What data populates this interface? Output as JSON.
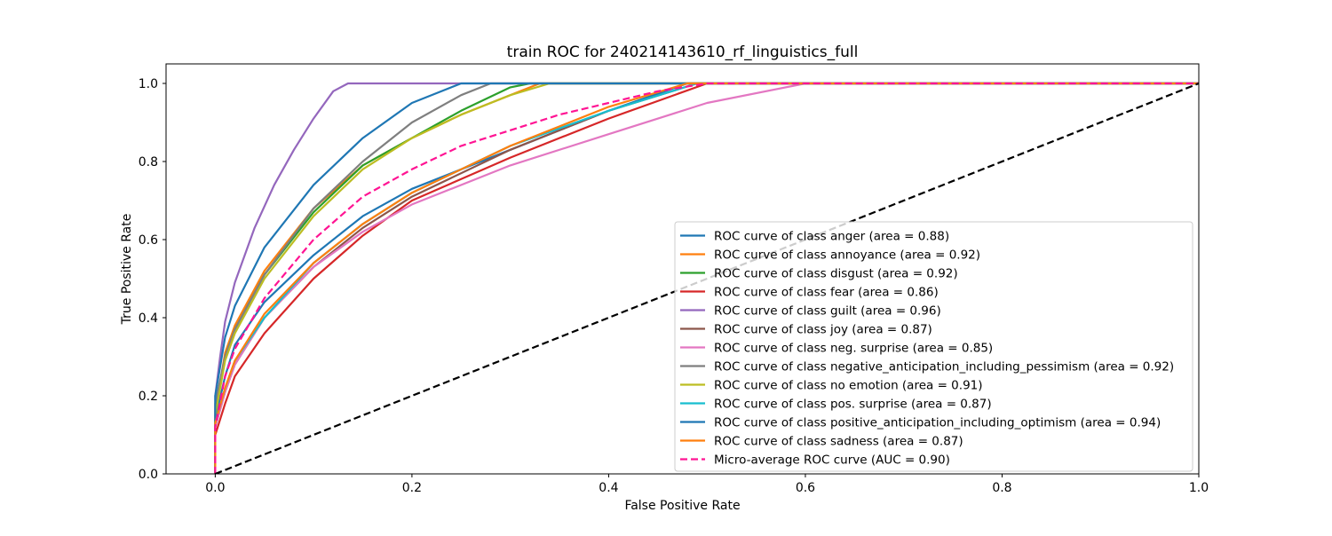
{
  "chart_data": {
    "type": "line",
    "title": "train ROC for 240214143610_rf_linguistics_full",
    "xlabel": "False Positive Rate",
    "ylabel": "True Positive Rate",
    "xlim": [
      -0.05,
      1.0
    ],
    "ylim": [
      0.0,
      1.05
    ],
    "xticks": [
      "0.0",
      "0.2",
      "0.4",
      "0.6",
      "0.8",
      "1.0"
    ],
    "yticks": [
      "0.0",
      "0.2",
      "0.4",
      "0.6",
      "0.8",
      "1.0"
    ],
    "grid": false,
    "legend_position": "lower-right",
    "series": [
      {
        "name": "ROC curve of class anger (area = 0.88)",
        "color": "#1f77b4",
        "dash": "solid",
        "x": [
          0,
          0,
          0.01,
          0.02,
          0.05,
          0.1,
          0.15,
          0.2,
          0.3,
          0.4,
          0.48,
          1.0
        ],
        "y": [
          0,
          0.14,
          0.25,
          0.33,
          0.44,
          0.56,
          0.66,
          0.73,
          0.83,
          0.93,
          1.0,
          1.0
        ]
      },
      {
        "name": "ROC curve of class annoyance (area = 0.92)",
        "color": "#ff7f0e",
        "dash": "solid",
        "x": [
          0,
          0,
          0.01,
          0.02,
          0.05,
          0.1,
          0.15,
          0.2,
          0.25,
          0.3,
          0.33,
          1.0
        ],
        "y": [
          0,
          0.16,
          0.31,
          0.38,
          0.52,
          0.68,
          0.79,
          0.86,
          0.92,
          0.97,
          1.0,
          1.0
        ]
      },
      {
        "name": "ROC curve of class disgust (area = 0.92)",
        "color": "#2ca02c",
        "dash": "solid",
        "x": [
          0,
          0,
          0.01,
          0.02,
          0.05,
          0.1,
          0.15,
          0.2,
          0.25,
          0.3,
          0.32,
          1.0
        ],
        "y": [
          0,
          0.15,
          0.3,
          0.37,
          0.51,
          0.67,
          0.79,
          0.86,
          0.93,
          0.99,
          1.0,
          1.0
        ]
      },
      {
        "name": "ROC curve of class fear (area = 0.86)",
        "color": "#d62728",
        "dash": "solid",
        "x": [
          0,
          0,
          0.01,
          0.02,
          0.05,
          0.1,
          0.15,
          0.2,
          0.3,
          0.4,
          0.5,
          1.0
        ],
        "y": [
          0,
          0.1,
          0.18,
          0.25,
          0.36,
          0.5,
          0.61,
          0.7,
          0.81,
          0.91,
          1.0,
          1.0
        ]
      },
      {
        "name": "ROC curve of class guilt (area = 0.96)",
        "color": "#9467bd",
        "dash": "solid",
        "x": [
          0,
          0,
          0.005,
          0.01,
          0.02,
          0.04,
          0.06,
          0.08,
          0.1,
          0.12,
          0.135,
          1.0
        ],
        "y": [
          0,
          0.2,
          0.3,
          0.39,
          0.49,
          0.63,
          0.74,
          0.83,
          0.91,
          0.98,
          1.0,
          1.0
        ]
      },
      {
        "name": "ROC curve of class joy (area = 0.87)",
        "color": "#8c564b",
        "dash": "solid",
        "x": [
          0,
          0,
          0.01,
          0.02,
          0.05,
          0.1,
          0.15,
          0.2,
          0.3,
          0.4,
          0.49,
          1.0
        ],
        "y": [
          0,
          0.12,
          0.21,
          0.28,
          0.4,
          0.53,
          0.63,
          0.71,
          0.83,
          0.93,
          1.0,
          1.0
        ]
      },
      {
        "name": "ROC curve of class neg. surprise (area = 0.85)",
        "color": "#e377c2",
        "dash": "solid",
        "x": [
          0,
          0,
          0.01,
          0.02,
          0.05,
          0.1,
          0.15,
          0.2,
          0.3,
          0.4,
          0.5,
          0.6,
          1.0
        ],
        "y": [
          0,
          0.12,
          0.21,
          0.28,
          0.4,
          0.53,
          0.62,
          0.69,
          0.79,
          0.87,
          0.95,
          1.0,
          1.0
        ]
      },
      {
        "name": "ROC curve of class negative_anticipation_including_pessimism (area = 0.92)",
        "color": "#7f7f7f",
        "dash": "solid",
        "x": [
          0,
          0,
          0.01,
          0.02,
          0.05,
          0.1,
          0.15,
          0.2,
          0.25,
          0.28,
          1.0
        ],
        "y": [
          0,
          0.18,
          0.3,
          0.37,
          0.51,
          0.68,
          0.8,
          0.9,
          0.97,
          1.0,
          1.0
        ]
      },
      {
        "name": "ROC curve of class no emotion (area = 0.91)",
        "color": "#bcbd22",
        "dash": "solid",
        "x": [
          0,
          0,
          0.01,
          0.02,
          0.05,
          0.1,
          0.15,
          0.2,
          0.25,
          0.3,
          0.34,
          1.0
        ],
        "y": [
          0,
          0.15,
          0.29,
          0.36,
          0.5,
          0.66,
          0.78,
          0.86,
          0.92,
          0.97,
          1.0,
          1.0
        ]
      },
      {
        "name": "ROC curve of class pos. surprise (area = 0.87)",
        "color": "#17becf",
        "dash": "solid",
        "x": [
          0,
          0,
          0.01,
          0.02,
          0.05,
          0.1,
          0.15,
          0.2,
          0.3,
          0.4,
          0.49,
          1.0
        ],
        "y": [
          0,
          0.13,
          0.22,
          0.29,
          0.4,
          0.54,
          0.64,
          0.72,
          0.84,
          0.93,
          1.0,
          1.0
        ]
      },
      {
        "name": "ROC curve of class positive_anticipation_including_optimism (area = 0.94)",
        "color": "#1f77b4",
        "dash": "solid",
        "x": [
          0,
          0,
          0.01,
          0.02,
          0.05,
          0.1,
          0.15,
          0.2,
          0.25,
          1.0
        ],
        "y": [
          0,
          0.2,
          0.35,
          0.43,
          0.58,
          0.74,
          0.86,
          0.95,
          1.0,
          1.0
        ]
      },
      {
        "name": "ROC curve of class sadness (area = 0.87)",
        "color": "#ff7f0e",
        "dash": "solid",
        "x": [
          0,
          0,
          0.01,
          0.02,
          0.05,
          0.1,
          0.15,
          0.2,
          0.3,
          0.4,
          0.48,
          1.0
        ],
        "y": [
          0,
          0.13,
          0.22,
          0.29,
          0.41,
          0.54,
          0.64,
          0.72,
          0.84,
          0.94,
          1.0,
          1.0
        ]
      },
      {
        "name": "Micro-average ROC curve (AUC = 0.90)",
        "color": "#ff1493",
        "dash": "dashed",
        "x": [
          0,
          0,
          0.01,
          0.02,
          0.05,
          0.1,
          0.15,
          0.2,
          0.25,
          0.3,
          0.35,
          0.4,
          0.45,
          0.5,
          1.0
        ],
        "y": [
          0,
          0.12,
          0.25,
          0.32,
          0.45,
          0.6,
          0.71,
          0.78,
          0.84,
          0.88,
          0.92,
          0.95,
          0.98,
          1.0,
          1.0
        ]
      },
      {
        "name": "",
        "color": "#000000",
        "dash": "dashed",
        "x": [
          0,
          1
        ],
        "y": [
          0,
          1
        ]
      }
    ]
  }
}
